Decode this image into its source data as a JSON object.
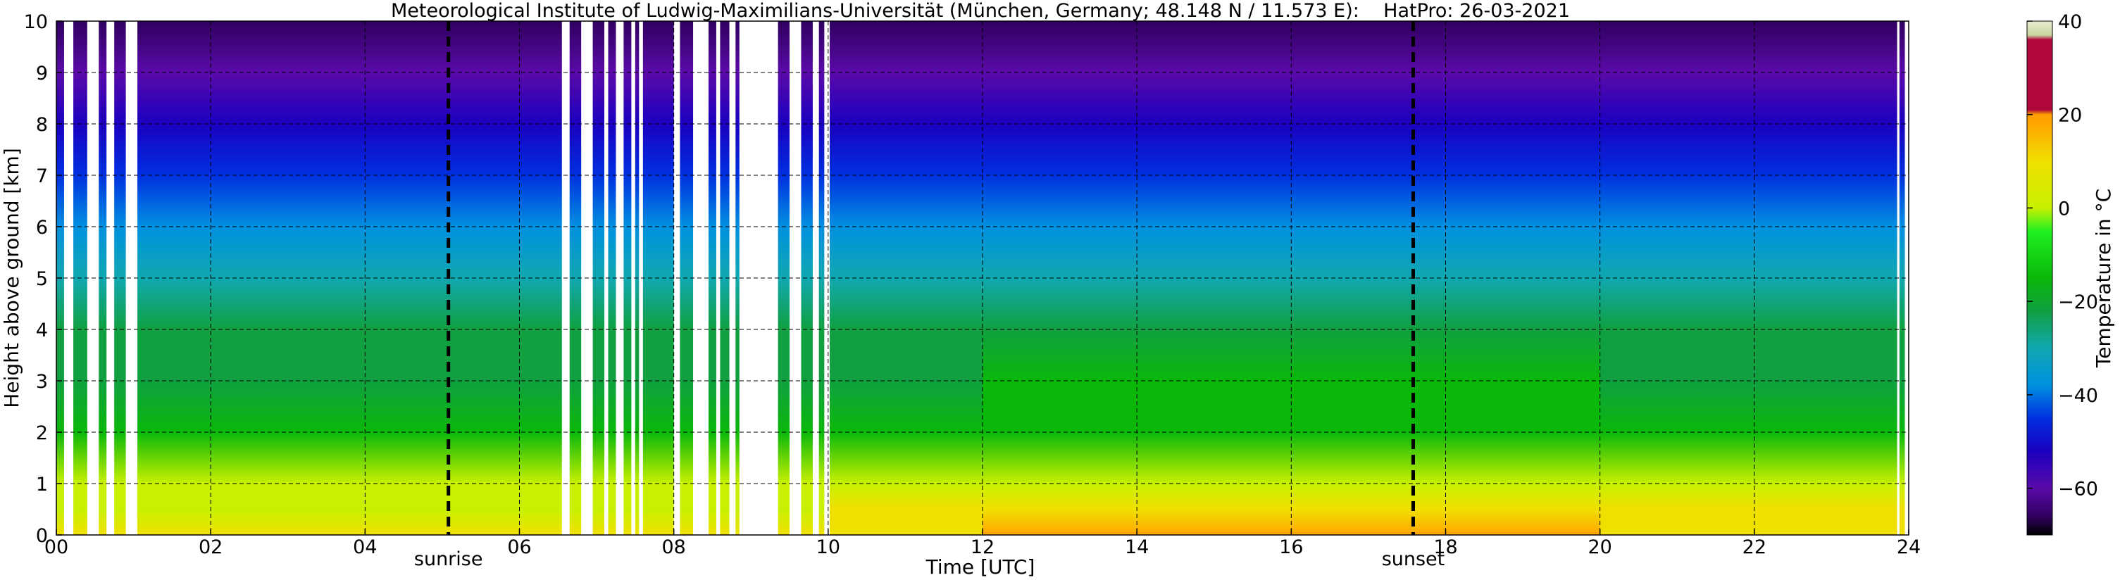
{
  "chart_data": {
    "type": "heatmap",
    "title": "Meteorological Institute of Ludwig-Maximilians-Universität (München, Germany; 48.148 N / 11.573 E):    HatPro: 26-03-2021",
    "xlabel": "Time [UTC]",
    "ylabel": "Height above ground [km]",
    "xlim": [
      0,
      24
    ],
    "ylim": [
      0,
      10
    ],
    "x_ticks": [
      0,
      2,
      4,
      6,
      8,
      10,
      12,
      14,
      16,
      18,
      20,
      22,
      24
    ],
    "x_tick_labels": [
      "00",
      "02",
      "04",
      "06",
      "08",
      "10",
      "12",
      "14",
      "16",
      "18",
      "20",
      "22",
      "24"
    ],
    "y_ticks": [
      0,
      1,
      2,
      3,
      4,
      5,
      6,
      7,
      8,
      9,
      10
    ],
    "y_tick_labels": [
      "0",
      "1",
      "2",
      "3",
      "4",
      "5",
      "6",
      "7",
      "8",
      "9",
      "10"
    ],
    "grid": true,
    "grid_style": "dashed",
    "vlines": [
      {
        "x": 5.08,
        "label": "sunrise"
      },
      {
        "x": 17.58,
        "label": "sunset"
      }
    ],
    "missing_data_intervals": [
      [
        0.1,
        0.22
      ],
      [
        0.4,
        0.55
      ],
      [
        0.65,
        0.75
      ],
      [
        0.9,
        1.05
      ],
      [
        6.55,
        6.65
      ],
      [
        6.8,
        6.95
      ],
      [
        7.1,
        7.15
      ],
      [
        7.25,
        7.35
      ],
      [
        7.45,
        7.5
      ],
      [
        7.55,
        7.6
      ],
      [
        8.0,
        8.08
      ],
      [
        8.25,
        8.45
      ],
      [
        8.55,
        8.6
      ],
      [
        8.72,
        8.8
      ],
      [
        8.85,
        9.35
      ],
      [
        9.5,
        9.65
      ],
      [
        9.8,
        9.88
      ],
      [
        9.95,
        10.02
      ],
      [
        23.85,
        23.88
      ],
      [
        23.95,
        24.0
      ]
    ],
    "temperature_profile": {
      "heights_km": [
        0,
        0.5,
        1,
        2,
        3,
        4,
        5,
        6,
        7,
        8,
        9,
        10
      ],
      "morning_values_c": [
        10,
        8,
        4,
        -8,
        -16,
        -22,
        -27,
        -35,
        -42,
        -50,
        -58,
        -66
      ],
      "afternoon_values_c": [
        19,
        12,
        7,
        -6,
        -15,
        -21,
        -26,
        -34,
        -41,
        -50,
        -58,
        -66
      ]
    },
    "colorbar": {
      "label": "Temperature in °C",
      "range": [
        -70,
        40
      ],
      "ticks": [
        -60,
        -40,
        -20,
        0,
        20,
        40
      ],
      "tick_labels": [
        "−60",
        "−40",
        "−20",
        "0",
        "20",
        "40"
      ],
      "colors": [
        {
          "value": -70,
          "color": "#000000"
        },
        {
          "value": -66,
          "color": "#300060"
        },
        {
          "value": -60,
          "color": "#5a0aa8"
        },
        {
          "value": -52,
          "color": "#1a00c0"
        },
        {
          "value": -45,
          "color": "#0030e0"
        },
        {
          "value": -38,
          "color": "#0090e0"
        },
        {
          "value": -30,
          "color": "#10a8b0"
        },
        {
          "value": -22,
          "color": "#10a040"
        },
        {
          "value": -15,
          "color": "#0ab80a"
        },
        {
          "value": -5,
          "color": "#20f020"
        },
        {
          "value": 0,
          "color": "#c8f000"
        },
        {
          "value": 10,
          "color": "#f0e000"
        },
        {
          "value": 18,
          "color": "#ffa500"
        },
        {
          "value": 20,
          "color": "#ff9e00"
        },
        {
          "value": 21,
          "color": "#b0083a"
        },
        {
          "value": 36,
          "color": "#b0083a"
        },
        {
          "value": 37,
          "color": "#c8d8a0"
        },
        {
          "value": 40,
          "color": "#e8ecd0"
        }
      ]
    }
  }
}
